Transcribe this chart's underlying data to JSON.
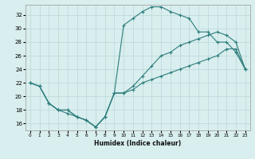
{
  "xlabel": "Humidex (Indice chaleur)",
  "xlim": [
    -0.5,
    23.5
  ],
  "ylim": [
    15,
    33.5
  ],
  "xticks": [
    0,
    1,
    2,
    3,
    4,
    5,
    6,
    7,
    8,
    9,
    10,
    11,
    12,
    13,
    14,
    15,
    16,
    17,
    18,
    19,
    20,
    21,
    22,
    23
  ],
  "yticks": [
    16,
    18,
    20,
    22,
    24,
    26,
    28,
    30,
    32
  ],
  "background_color": "#d9eeee",
  "line_color": "#2e7d7d",
  "grid_color": "#b8d8d8",
  "line1_x": [
    0,
    1,
    2,
    3,
    4,
    5,
    6,
    7,
    8,
    9,
    10,
    11,
    12,
    13,
    14,
    15,
    16,
    17,
    18,
    19,
    20,
    21,
    22,
    23
  ],
  "line1_y": [
    22,
    21.5,
    19,
    18,
    17.5,
    17,
    16.5,
    15.5,
    17,
    20.5,
    30.5,
    31.5,
    32.5,
    33.2,
    33.2,
    32.5,
    32,
    31.5,
    29.5,
    29.5,
    28,
    28,
    26.5,
    24
  ],
  "line2_x": [
    0,
    1,
    2,
    3,
    4,
    5,
    6,
    7,
    8,
    9,
    10,
    11,
    12,
    13,
    14,
    15,
    16,
    17,
    18,
    19,
    20,
    21,
    22,
    23
  ],
  "line2_y": [
    22,
    21.5,
    19,
    18,
    18,
    17,
    16.5,
    15.5,
    17,
    20.5,
    20.5,
    21.5,
    23,
    24.5,
    26,
    26.5,
    27.5,
    28,
    28.5,
    29,
    29.5,
    29,
    28,
    24
  ],
  "line3_x": [
    0,
    1,
    2,
    3,
    4,
    5,
    6,
    7,
    8,
    9,
    10,
    11,
    12,
    13,
    14,
    15,
    16,
    17,
    18,
    19,
    20,
    21,
    22,
    23
  ],
  "line3_y": [
    22,
    21.5,
    19,
    18,
    18,
    17,
    16.5,
    15.5,
    17,
    20.5,
    20.5,
    21,
    22,
    22.5,
    23,
    23.5,
    24,
    24.5,
    25,
    25.5,
    26,
    27,
    27,
    24
  ]
}
